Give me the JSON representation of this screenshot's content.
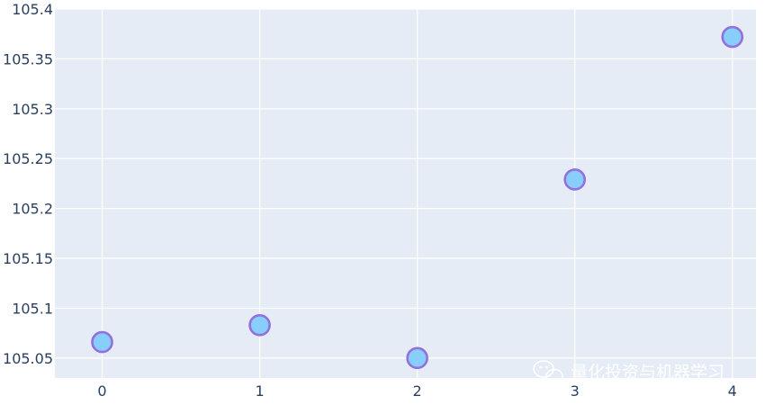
{
  "chart_data": {
    "type": "scatter",
    "title": "",
    "xlabel": "",
    "ylabel": "",
    "x": [
      0,
      1,
      2,
      3,
      4
    ],
    "y": [
      105.066,
      105.083,
      105.05,
      105.229,
      105.372
    ],
    "xlim": [
      -0.3,
      4.15
    ],
    "ylim": [
      105.03,
      105.4
    ],
    "x_ticks": [
      0,
      1,
      2,
      3,
      4
    ],
    "x_tick_labels": [
      "0",
      "1",
      "2",
      "3",
      "4"
    ],
    "y_ticks": [
      105.05,
      105.1,
      105.15,
      105.2,
      105.25,
      105.3,
      105.35,
      105.4
    ],
    "y_tick_labels": [
      "105.05",
      "105.1",
      "105.15",
      "105.2",
      "105.25",
      "105.3",
      "105.35",
      "105.4"
    ],
    "grid": true,
    "colors": {
      "plot_background": "#e5ecf6",
      "grid": "#ffffff",
      "marker_fill": "#87cefa",
      "marker_edge": "#9370db",
      "tick_text": "#2a3f5f"
    }
  },
  "watermark": {
    "icon": "wechat-icon",
    "text": "量化投资与机器学习"
  }
}
